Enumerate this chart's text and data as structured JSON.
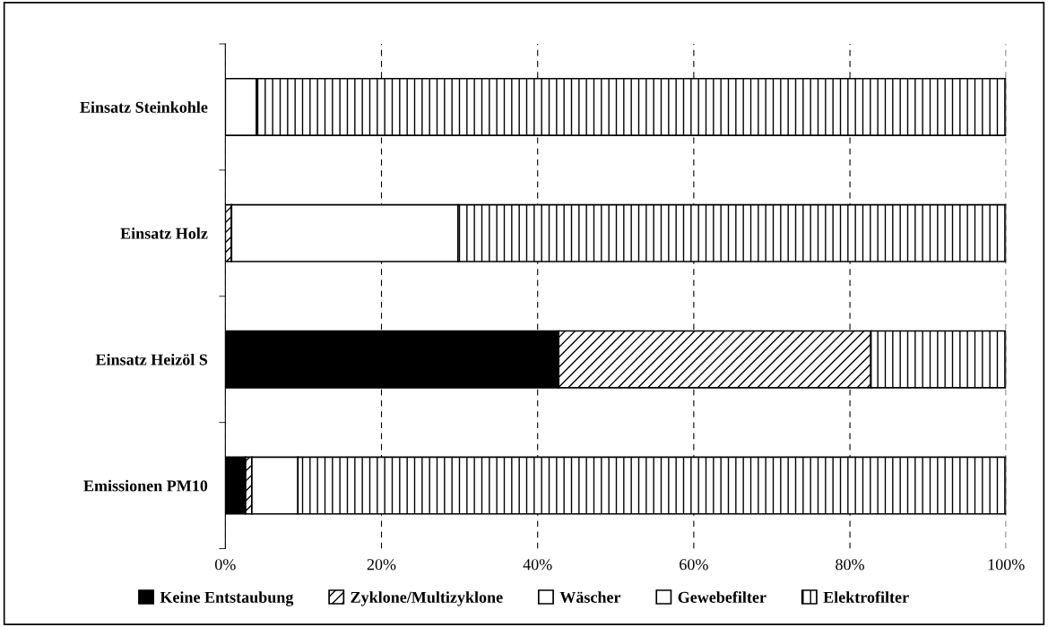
{
  "chart_data": {
    "type": "bar",
    "orientation": "horizontal",
    "stacked": true,
    "categories": [
      "Einsatz Steinkohle",
      "Einsatz Holz",
      "Einsatz Heizöl S",
      "Emissionen PM10"
    ],
    "series": [
      {
        "name": "Keine Entstaubung",
        "color": "#000000",
        "values": [
          0,
          0,
          42.7,
          2.6
        ]
      },
      {
        "name": "Zyklone/Multizyklone",
        "color": "#ffffff",
        "values": [
          0,
          0.8,
          40,
          0.8
        ]
      },
      {
        "name": "Wäscher",
        "color": "#ffffff",
        "values": [
          0,
          0,
          0,
          0
        ]
      },
      {
        "name": "Gewebefilter",
        "color": "#ffffff",
        "values": [
          4,
          29,
          0,
          5.9
        ]
      },
      {
        "name": "Elektrofilter",
        "color": "#ffffff",
        "values": [
          96,
          70.2,
          17.3,
          90.7
        ]
      }
    ],
    "xlim": [
      0,
      100
    ],
    "xticks": [
      {
        "value": 0,
        "label": "0%"
      },
      {
        "value": 20,
        "label": "20%"
      },
      {
        "value": 40,
        "label": "40%"
      },
      {
        "value": 60,
        "label": "60%"
      },
      {
        "value": 80,
        "label": "80%"
      },
      {
        "value": 100,
        "label": "100%"
      }
    ],
    "grid": "x",
    "legend": "bottom"
  }
}
